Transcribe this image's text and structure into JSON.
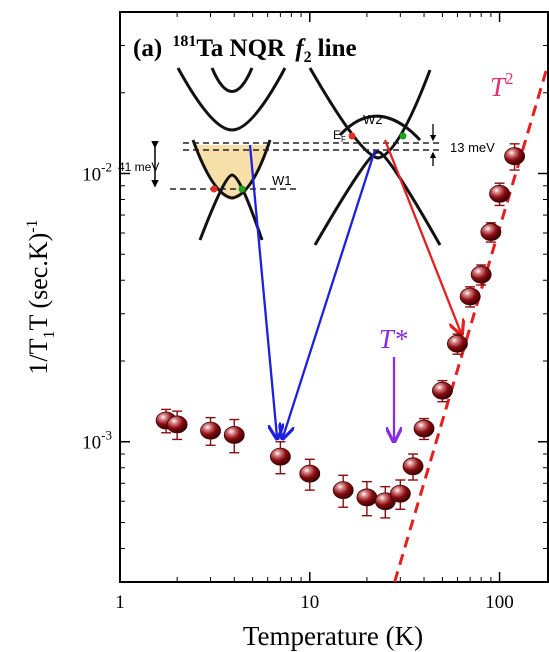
{
  "chart_data": {
    "type": "scatter",
    "panel_label": "(a)",
    "title_isotope": "181",
    "title_element": "Ta NQR",
    "title_line": "f",
    "title_line_sub": "2",
    "title_suffix": "line",
    "xlabel": "Temperature (K)",
    "ylabel_main": "1/T",
    "ylabel_sub": "1",
    "ylabel_tail": "T (sec.K)",
    "ylabel_exp": "-1",
    "x_scale": "log",
    "y_scale": "log",
    "xlim": [
      1,
      180
    ],
    "ylim": [
      0.0003,
      0.04
    ],
    "x_ticks": [
      {
        "value": 1,
        "label": "1"
      },
      {
        "value": 10,
        "label": "10"
      },
      {
        "value": 100,
        "label": "100"
      }
    ],
    "y_ticks": [
      {
        "value": 0.001,
        "base": "10",
        "exp": "-3"
      },
      {
        "value": 0.01,
        "base": "10",
        "exp": "-2"
      }
    ],
    "grid": false,
    "series": [
      {
        "marker_color": "#8b0d10",
        "points": [
          {
            "x": 1.75,
            "y": 0.0012,
            "err": 0.00012
          },
          {
            "x": 2.0,
            "y": 0.00116,
            "err": 0.00014
          },
          {
            "x": 3.0,
            "y": 0.0011,
            "err": 0.00013
          },
          {
            "x": 4.0,
            "y": 0.00106,
            "err": 0.00015
          },
          {
            "x": 7.0,
            "y": 0.00088,
            "err": 0.00012
          },
          {
            "x": 10.0,
            "y": 0.00076,
            "err": 0.0001
          },
          {
            "x": 15.0,
            "y": 0.00066,
            "err": 9e-05
          },
          {
            "x": 20.0,
            "y": 0.00062,
            "err": 9e-05
          },
          {
            "x": 25.0,
            "y": 0.0006,
            "err": 8e-05
          },
          {
            "x": 30.0,
            "y": 0.00064,
            "err": 8e-05
          },
          {
            "x": 35.0,
            "y": 0.00081,
            "err": 9e-05
          },
          {
            "x": 40.0,
            "y": 0.00112,
            "err": 0.0001
          },
          {
            "x": 50.0,
            "y": 0.00155,
            "err": 0.00014
          },
          {
            "x": 60.0,
            "y": 0.00232,
            "err": 0.0002
          },
          {
            "x": 70.0,
            "y": 0.00348,
            "err": 0.0003
          },
          {
            "x": 80.0,
            "y": 0.0042,
            "err": 0.00036
          },
          {
            "x": 90.0,
            "y": 0.00605,
            "err": 0.0005
          },
          {
            "x": 100.0,
            "y": 0.0084,
            "err": 0.0008
          },
          {
            "x": 120.0,
            "y": 0.0116,
            "err": 0.0013
          }
        ]
      }
    ],
    "fit_line": {
      "label": "T",
      "label_exp": "2",
      "color": "#e61e1e",
      "label_color": "#e0306e",
      "x": [
        28,
        190
      ],
      "y": [
        0.0003,
        0.029
      ]
    },
    "annotations": {
      "tstar_label": "T*",
      "tstar_exp": "",
      "tstar_color": "#8a2be2",
      "tstar_x": 29
    },
    "inset": {
      "label_w1": "W1",
      "label_w2": "W2",
      "label_ef": "E",
      "label_ef_sub": "F",
      "label_41": "41 meV",
      "label_13": "13 meV",
      "band_fill": "#f5d99a",
      "arrow_blue": "#1f1fe0",
      "arrow_red": "#e61e1e",
      "dot_red": "#e0301e",
      "dot_green": "#1ea01e"
    }
  }
}
